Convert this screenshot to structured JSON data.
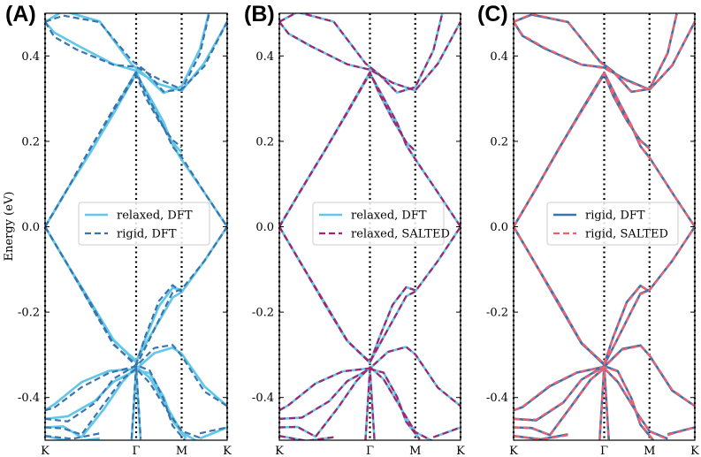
{
  "figure": {
    "ylabel": "Energy (eV)",
    "colors": {
      "relaxed_dft": "#5ec7ea",
      "rigid_dft": "#3b73ad",
      "relaxed_salted": "#a8236e",
      "rigid_salted": "#f2606d"
    }
  },
  "chart_data": [
    {
      "type": "line",
      "panel_label": "(A)",
      "title": "",
      "xlabel": "",
      "ylabel": "Energy (eV)",
      "ylim": [
        -0.5,
        0.5
      ],
      "yticks": [
        -0.4,
        -0.2,
        0.0,
        0.2,
        0.4
      ],
      "ytick_labels": [
        "-0.4",
        "-0.2",
        "0.0",
        "0.2",
        "0.4"
      ],
      "xticks": [
        "K",
        "Γ",
        "M",
        "K"
      ],
      "x_positions": [
        0,
        1,
        1.5,
        2
      ],
      "legend": [
        {
          "label": "relaxed, DFT",
          "style": "solid",
          "series": "relaxed_dft"
        },
        {
          "label": "rigid, DFT",
          "style": "dashed",
          "series": "rigid_dft"
        }
      ],
      "series": [
        {
          "name": "relaxed, DFT",
          "key": "relaxed_dft",
          "style": "solid",
          "order": 0,
          "perturb": 1.0
        },
        {
          "name": "rigid, DFT",
          "key": "rigid_dft",
          "style": "dashed",
          "order": 1,
          "perturb": -1.0
        }
      ]
    },
    {
      "type": "line",
      "panel_label": "(B)",
      "title": "",
      "xlabel": "",
      "ylabel": "",
      "ylim": [
        -0.5,
        0.5
      ],
      "yticks": [
        -0.4,
        -0.2,
        0.0,
        0.2,
        0.4
      ],
      "ytick_labels": [
        "-0.4",
        "-0.2",
        "0.0",
        "0.2",
        "0.4"
      ],
      "xticks": [
        "K",
        "Γ",
        "M",
        "K"
      ],
      "x_positions": [
        0,
        1,
        1.5,
        2
      ],
      "legend": [
        {
          "label": "relaxed, DFT",
          "style": "solid",
          "series": "relaxed_dft"
        },
        {
          "label": "relaxed, SALTED",
          "style": "dashed",
          "series": "relaxed_salted"
        }
      ],
      "series": [
        {
          "name": "relaxed, DFT",
          "key": "relaxed_dft",
          "style": "solid",
          "order": 0,
          "perturb": 0.5
        },
        {
          "name": "relaxed, SALTED",
          "key": "relaxed_salted",
          "style": "dashed",
          "order": 1,
          "perturb": 0.5
        }
      ]
    },
    {
      "type": "line",
      "panel_label": "(C)",
      "title": "",
      "xlabel": "",
      "ylabel": "",
      "ylim": [
        -0.5,
        0.5
      ],
      "yticks": [
        -0.4,
        -0.2,
        0.0,
        0.2,
        0.4
      ],
      "ytick_labels": [
        "-0.4",
        "-0.2",
        "0.0",
        "0.2",
        "0.4"
      ],
      "xticks": [
        "K",
        "Γ",
        "M",
        "K"
      ],
      "x_positions": [
        0,
        1,
        1.5,
        2
      ],
      "legend": [
        {
          "label": "rigid, DFT",
          "style": "solid",
          "series": "rigid_dft"
        },
        {
          "label": "rigid, SALTED",
          "style": "dashed",
          "series": "rigid_salted"
        }
      ],
      "series": [
        {
          "name": "rigid, DFT",
          "key": "rigid_dft",
          "style": "solid",
          "order": 0,
          "perturb": -0.6
        },
        {
          "name": "rigid, SALTED",
          "key": "rigid_salted",
          "style": "dashed",
          "order": 1,
          "perturb": -0.3
        }
      ]
    }
  ],
  "bands": [
    [
      [
        0.0,
        0.48
      ],
      [
        0.1,
        0.45
      ],
      [
        0.35,
        0.42
      ],
      [
        0.75,
        0.38
      ],
      [
        1.0,
        0.37
      ],
      [
        1.25,
        0.34
      ],
      [
        1.5,
        0.32
      ],
      [
        1.75,
        0.38
      ],
      [
        2.0,
        0.48
      ]
    ],
    [
      [
        0.0,
        0.48
      ],
      [
        0.2,
        0.5
      ],
      [
        0.6,
        0.48
      ],
      [
        0.95,
        0.385
      ],
      [
        1.1,
        0.36
      ],
      [
        1.3,
        0.315
      ],
      [
        1.5,
        0.325
      ],
      [
        1.7,
        0.41
      ],
      [
        1.8,
        0.5
      ]
    ],
    [
      [
        0.0,
        0.0
      ],
      [
        0.25,
        0.09
      ],
      [
        0.5,
        0.18
      ],
      [
        0.75,
        0.27
      ],
      [
        1.0,
        0.36
      ],
      [
        1.15,
        0.3
      ],
      [
        1.3,
        0.24
      ],
      [
        1.4,
        0.19
      ],
      [
        1.5,
        0.16
      ],
      [
        1.75,
        0.08
      ],
      [
        2.0,
        0.0
      ]
    ],
    [
      [
        0.0,
        0.0
      ],
      [
        0.25,
        0.09
      ],
      [
        0.5,
        0.18
      ],
      [
        0.75,
        0.27
      ],
      [
        1.0,
        0.36
      ],
      [
        1.1,
        0.31
      ],
      [
        1.25,
        0.25
      ],
      [
        1.4,
        0.2
      ],
      [
        1.5,
        0.18
      ]
    ],
    [
      [
        0.0,
        0.0
      ],
      [
        0.25,
        -0.09
      ],
      [
        0.5,
        -0.18
      ],
      [
        0.75,
        -0.27
      ],
      [
        1.0,
        -0.32
      ],
      [
        1.15,
        -0.26
      ],
      [
        1.3,
        -0.2
      ],
      [
        1.4,
        -0.16
      ],
      [
        1.5,
        -0.15
      ],
      [
        1.75,
        -0.08
      ],
      [
        2.0,
        0.0
      ]
    ],
    [
      [
        0.0,
        0.0
      ],
      [
        0.25,
        -0.09
      ],
      [
        0.5,
        -0.18
      ],
      [
        0.75,
        -0.27
      ],
      [
        1.0,
        -0.32
      ],
      [
        1.1,
        -0.26
      ],
      [
        1.25,
        -0.18
      ],
      [
        1.4,
        -0.14
      ],
      [
        1.5,
        -0.15
      ]
    ],
    [
      [
        0.0,
        -0.43
      ],
      [
        0.1,
        -0.42
      ],
      [
        0.4,
        -0.37
      ],
      [
        0.7,
        -0.34
      ],
      [
        1.0,
        -0.33
      ],
      [
        1.2,
        -0.29
      ],
      [
        1.4,
        -0.28
      ],
      [
        1.5,
        -0.3
      ],
      [
        1.75,
        -0.38
      ],
      [
        2.0,
        -0.42
      ]
    ],
    [
      [
        0.0,
        -0.45
      ],
      [
        0.25,
        -0.45
      ],
      [
        0.55,
        -0.41
      ],
      [
        0.75,
        -0.36
      ],
      [
        1.0,
        -0.33
      ],
      [
        1.15,
        -0.34
      ],
      [
        1.3,
        -0.4
      ],
      [
        1.4,
        -0.46
      ],
      [
        1.55,
        -0.5
      ]
    ],
    [
      [
        0.0,
        -0.47
      ],
      [
        0.2,
        -0.47
      ],
      [
        0.4,
        -0.49
      ],
      [
        0.65,
        -0.42
      ],
      [
        0.85,
        -0.36
      ],
      [
        1.0,
        -0.33
      ],
      [
        1.15,
        -0.36
      ],
      [
        1.35,
        -0.43
      ],
      [
        1.5,
        -0.48
      ],
      [
        1.7,
        -0.5
      ]
    ],
    [
      [
        0.0,
        -0.49
      ],
      [
        0.3,
        -0.5
      ],
      [
        0.6,
        -0.49
      ]
    ],
    [
      [
        0.95,
        -0.5
      ],
      [
        1.0,
        -0.33
      ],
      [
        1.05,
        -0.5
      ]
    ],
    [
      [
        1.7,
        -0.49
      ],
      [
        1.85,
        -0.48
      ],
      [
        2.0,
        -0.47
      ]
    ]
  ]
}
